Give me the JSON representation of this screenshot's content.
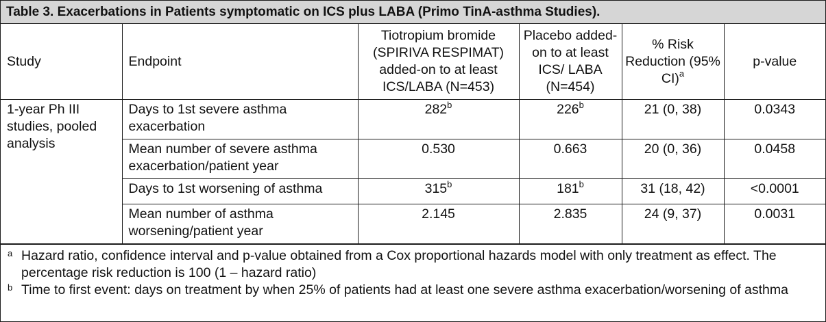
{
  "title": "Table 3. Exacerbations in Patients symptomatic on ICS plus LABA (Primo TinA-asthma Studies).",
  "headers": {
    "study": "Study",
    "endpoint": "Endpoint",
    "tiotropium": "Tiotropium bromide (SPIRIVA RESPIMAT) added-on to at least ICS/LABA (N=453)",
    "placebo": "Placebo added-on to at least ICS/ LABA (N=454)",
    "risk": "% Risk Reduction (95% CI)",
    "risk_sup": "a",
    "pvalue": "p-value"
  },
  "study": "1-year Ph III studies, pooled analysis",
  "rows": [
    {
      "endpoint": "Days to 1st severe asthma exacerbation",
      "tiotropium": "282",
      "tiotropium_sup": "b",
      "placebo": "226",
      "placebo_sup": "b",
      "risk": "21 (0, 38)",
      "pvalue": "0.0343"
    },
    {
      "endpoint": "Mean number of severe asthma exacerbation/patient year",
      "tiotropium": "0.530",
      "tiotropium_sup": "",
      "placebo": "0.663",
      "placebo_sup": "",
      "risk": "20 (0, 36)",
      "pvalue": "0.0458"
    },
    {
      "endpoint": "Days to 1st worsening of asthma",
      "tiotropium": "315",
      "tiotropium_sup": "b",
      "placebo": "181",
      "placebo_sup": "b",
      "risk": "31 (18, 42)",
      "pvalue": "<0.0001"
    },
    {
      "endpoint": "Mean number of asthma worsening/patient year",
      "tiotropium": "2.145",
      "tiotropium_sup": "",
      "placebo": "2.835",
      "placebo_sup": "",
      "risk": "24 (9, 37)",
      "pvalue": "0.0031"
    }
  ],
  "footnotes": [
    {
      "mark": "a",
      "text": "Hazard ratio, confidence interval and p-value obtained from a Cox proportional hazards model with only treatment as effect. The percentage risk reduction is 100 (1 – hazard ratio)"
    },
    {
      "mark": "b",
      "text": "Time to first event: days on treatment by when 25% of patients had at least one severe asthma exacerbation/worsening of asthma"
    }
  ],
  "colors": {
    "title_bg": "#d6d6d6",
    "border": "#1a1a1a"
  }
}
